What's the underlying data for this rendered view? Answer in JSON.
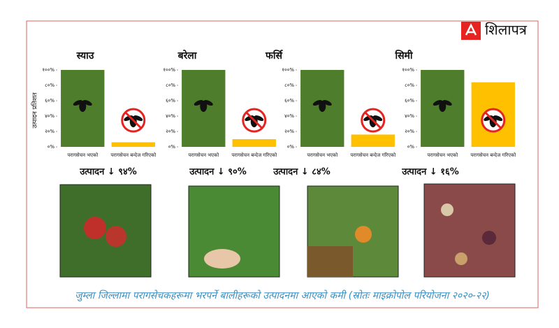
{
  "logo": "शिलापत्र",
  "chart_data": [
    {
      "type": "bar",
      "title": "स्याउ",
      "ylabel": "उत्पादन प्रतिशत",
      "categories": [
        "परागसेचन भएको",
        "परागसेचन बन्देज गरिएको"
      ],
      "values": [
        100,
        6
      ],
      "colors": [
        "#4e7d2c",
        "#ffc000"
      ],
      "ylim": [
        0,
        100
      ],
      "yticks": [
        {
          "value": 0,
          "label": "०%"
        },
        {
          "value": 20,
          "label": "२०%"
        },
        {
          "value": 40,
          "label": "४०%"
        },
        {
          "value": 60,
          "label": "६०%"
        },
        {
          "value": 80,
          "label": "८०%"
        },
        {
          "value": 100,
          "label": "१००%"
        }
      ],
      "annotation": "उत्पादन ↓ ९४%"
    },
    {
      "type": "bar",
      "title": "बरेला",
      "categories": [
        "परागसेचन भएको",
        "परागसेचन बन्देज गरिएको"
      ],
      "values": [
        100,
        10
      ],
      "colors": [
        "#4e7d2c",
        "#ffc000"
      ],
      "ylim": [
        0,
        100
      ],
      "yticks": [
        {
          "value": 0,
          "label": "०%"
        },
        {
          "value": 20,
          "label": "२०%"
        },
        {
          "value": 40,
          "label": "४०%"
        },
        {
          "value": 60,
          "label": "६०%"
        },
        {
          "value": 80,
          "label": "८०%"
        },
        {
          "value": 100,
          "label": "१००%"
        }
      ],
      "annotation": "उत्पादन ↓ ९०%"
    },
    {
      "type": "bar",
      "title": "फर्सि",
      "categories": [
        "परागसेचन भएको",
        "परागसेचन बन्देज गरिएको"
      ],
      "values": [
        100,
        16
      ],
      "colors": [
        "#4e7d2c",
        "#ffc000"
      ],
      "ylim": [
        0,
        100
      ],
      "yticks": [
        {
          "value": 0,
          "label": "०%"
        },
        {
          "value": 20,
          "label": "२०%"
        },
        {
          "value": 40,
          "label": "४०%"
        },
        {
          "value": 60,
          "label": "६०%"
        },
        {
          "value": 80,
          "label": "८०%"
        },
        {
          "value": 100,
          "label": "१००%"
        }
      ],
      "annotation": "उत्पादन ↓ ८४%"
    },
    {
      "type": "bar",
      "title": "सिमी",
      "categories": [
        "परागसेचन भएको",
        "परागसेचन बन्देज गरिएको"
      ],
      "values": [
        100,
        84
      ],
      "colors": [
        "#4e7d2c",
        "#ffc000"
      ],
      "ylim": [
        0,
        100
      ],
      "yticks": [
        {
          "value": 0,
          "label": "०%"
        },
        {
          "value": 20,
          "label": "२०%"
        },
        {
          "value": 40,
          "label": "४०%"
        },
        {
          "value": 60,
          "label": "६०%"
        },
        {
          "value": 80,
          "label": "८०%"
        },
        {
          "value": 100,
          "label": "१००%"
        }
      ],
      "annotation": "उत्पादन ↓ १६%"
    }
  ],
  "caption": "जुम्ला जिल्लामा परागसेचकहरूमा भरपर्ने बालीहरूको उत्पादनमा आएको कमी (स्रोतः माइक्रोपोल परियोजना २०२०-२२)"
}
